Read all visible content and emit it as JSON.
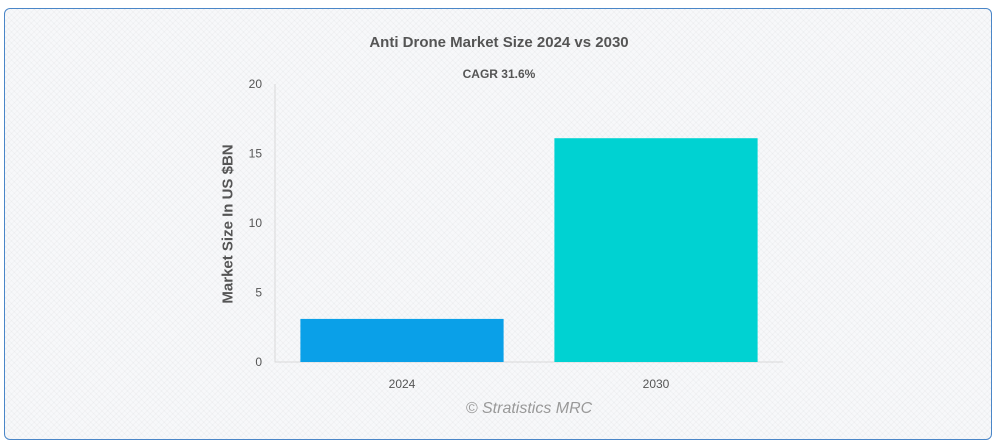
{
  "chart_data": {
    "type": "bar",
    "title": "Anti Drone Market Size 2024 vs 2030",
    "subtitle": "CAGR 31.6%",
    "xlabel": "",
    "ylabel": "Market Size In US $BN",
    "categories": [
      "2024",
      "2030"
    ],
    "values": [
      3.1,
      16.1
    ],
    "colors": [
      "#0aa0e8",
      "#00d2d2"
    ],
    "ylim": [
      0,
      20
    ],
    "yticks": [
      0,
      5,
      10,
      15,
      20
    ],
    "grid": false,
    "legend": "none"
  },
  "watermark": "© Stratistics MRC"
}
